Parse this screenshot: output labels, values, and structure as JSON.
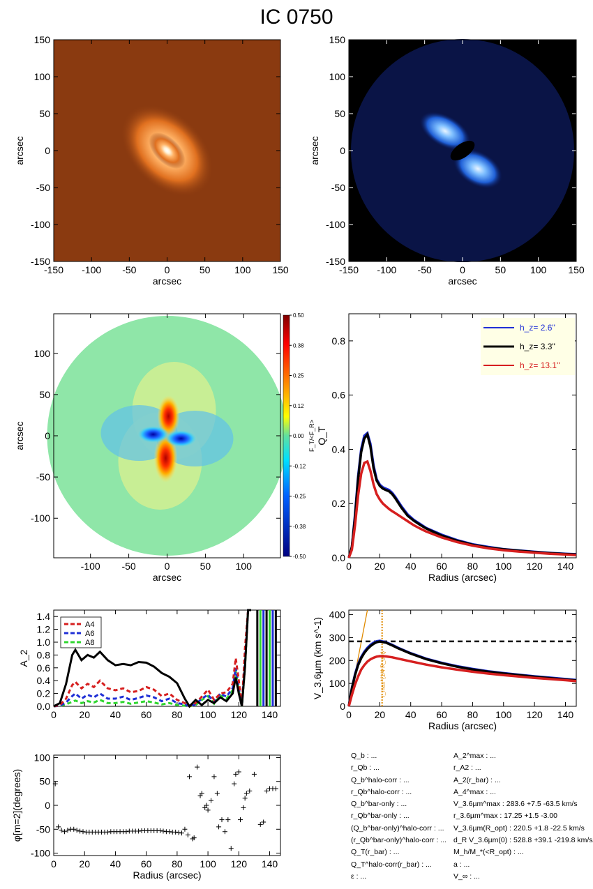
{
  "title": "IC 0750",
  "chart_data": [
    {
      "id": "image-3p6um",
      "type": "heatmap",
      "xlabel": "arcsec",
      "ylabel": "arcsec",
      "xlim": [
        -150,
        150
      ],
      "ylim": [
        -150,
        150
      ],
      "xticks": [
        -150,
        -100,
        -50,
        0,
        50,
        100,
        150
      ],
      "yticks": [
        -150,
        -100,
        -50,
        0,
        50,
        100,
        150
      ],
      "colormap": "orange-heat",
      "background_color": "#8a3a10"
    },
    {
      "id": "residual-image",
      "type": "heatmap",
      "xlabel": "arcsec",
      "ylabel": "arcsec",
      "xlim": [
        -150,
        150
      ],
      "ylim": [
        -150,
        150
      ],
      "xticks": [
        -150,
        -100,
        -50,
        0,
        50,
        100,
        150
      ],
      "yticks": [
        -150,
        -100,
        -50,
        0,
        50,
        100,
        150
      ],
      "colormap": "blue",
      "background_color": "#000000"
    },
    {
      "id": "force-ratio-map",
      "type": "heatmap",
      "xlabel": "arcsec",
      "ylabel": "arcsec",
      "xlim": [
        -148,
        148
      ],
      "ylim": [
        -148,
        148
      ],
      "xticks": [
        -100,
        -50,
        0,
        50,
        100
      ],
      "yticks": [
        -100,
        -50,
        0,
        50,
        100
      ],
      "colorbar_label": "F_T/<F_R>",
      "colorbar_ticks": [
        "0.50",
        "0.38",
        "0.25",
        "0.12",
        "0.00",
        "-0.12",
        "-0.25",
        "-0.38",
        "-0.50"
      ],
      "colorbar_range": [
        -0.5,
        0.5
      ]
    },
    {
      "id": "qt-profile",
      "type": "line",
      "xlabel": "Radius (arcsec)",
      "ylabel": "Q_T",
      "xlim": [
        0,
        147
      ],
      "ylim": [
        0,
        0.9
      ],
      "xticks": [
        0,
        20,
        40,
        60,
        80,
        100,
        120,
        140
      ],
      "yticks": [
        0.0,
        0.2,
        0.4,
        0.6,
        0.8
      ],
      "x": [
        0,
        2,
        4,
        6,
        8,
        10,
        12,
        14,
        16,
        18,
        20,
        22,
        24,
        26,
        28,
        30,
        34,
        38,
        42,
        46,
        50,
        60,
        70,
        80,
        90,
        100,
        110,
        120,
        130,
        140,
        147
      ],
      "series": [
        {
          "name": "h_z=  2.6''",
          "color": "#1f2fd6",
          "values": [
            0.0,
            0.04,
            0.16,
            0.3,
            0.4,
            0.45,
            0.46,
            0.42,
            0.34,
            0.29,
            0.27,
            0.26,
            0.255,
            0.25,
            0.24,
            0.225,
            0.19,
            0.16,
            0.14,
            0.125,
            0.11,
            0.085,
            0.065,
            0.05,
            0.04,
            0.032,
            0.027,
            0.022,
            0.018,
            0.015,
            0.013
          ]
        },
        {
          "name": "h_z=   3.3''",
          "color": "#000000",
          "values": [
            0.0,
            0.04,
            0.15,
            0.29,
            0.39,
            0.44,
            0.455,
            0.41,
            0.33,
            0.285,
            0.265,
            0.255,
            0.25,
            0.245,
            0.235,
            0.22,
            0.185,
            0.155,
            0.137,
            0.122,
            0.108,
            0.082,
            0.063,
            0.048,
            0.038,
            0.031,
            0.026,
            0.021,
            0.017,
            0.014,
            0.012
          ]
        },
        {
          "name": "h_z= 13.1''",
          "color": "#d61f1f",
          "values": [
            0.0,
            0.03,
            0.12,
            0.23,
            0.31,
            0.35,
            0.355,
            0.32,
            0.27,
            0.235,
            0.215,
            0.2,
            0.19,
            0.18,
            0.172,
            0.165,
            0.15,
            0.135,
            0.12,
            0.108,
            0.097,
            0.075,
            0.058,
            0.045,
            0.035,
            0.028,
            0.023,
            0.019,
            0.015,
            0.012,
            0.01
          ]
        }
      ],
      "legend_position": "top-right"
    },
    {
      "id": "fourier-amplitudes",
      "type": "line",
      "ylabel": "A_2",
      "xlim": [
        0,
        147
      ],
      "ylim": [
        0,
        1.5
      ],
      "xticks": [
        0,
        20,
        40,
        60,
        80,
        100,
        120,
        140
      ],
      "yticks": [
        0.0,
        0.2,
        0.4,
        0.6,
        0.8,
        1.0,
        1.2,
        1.4
      ],
      "x": [
        0,
        4,
        8,
        12,
        14,
        18,
        22,
        26,
        30,
        35,
        40,
        45,
        50,
        55,
        60,
        65,
        70,
        75,
        80,
        85,
        88,
        92,
        96,
        100,
        104,
        108,
        112,
        116,
        118,
        120,
        122,
        124,
        126,
        128
      ],
      "series": [
        {
          "name": "A_2",
          "color": "#000000",
          "dash": false,
          "values": [
            0.0,
            0.05,
            0.35,
            0.8,
            0.88,
            0.72,
            0.8,
            0.76,
            0.85,
            0.72,
            0.64,
            0.66,
            0.64,
            0.69,
            0.68,
            0.62,
            0.52,
            0.46,
            0.36,
            0.12,
            0.0,
            0.1,
            0.02,
            0.1,
            0.05,
            0.14,
            0.08,
            0.2,
            0.45,
            0.2,
            0.0,
            0.6,
            1.5,
            1.5
          ]
        },
        {
          "name": "A_4",
          "color": "#d61f1f",
          "dash": true,
          "values": [
            0.0,
            0.02,
            0.12,
            0.33,
            0.38,
            0.28,
            0.35,
            0.3,
            0.4,
            0.28,
            0.25,
            0.28,
            0.22,
            0.24,
            0.3,
            0.26,
            0.16,
            0.2,
            0.1,
            0.05,
            0.0,
            0.05,
            0.15,
            0.26,
            0.1,
            0.2,
            0.22,
            0.35,
            0.75,
            0.4,
            0.0,
            0.9,
            1.5,
            1.5
          ]
        },
        {
          "name": "A_6",
          "color": "#1f2fd6",
          "dash": true,
          "values": [
            0.0,
            0.01,
            0.06,
            0.16,
            0.2,
            0.12,
            0.18,
            0.14,
            0.2,
            0.12,
            0.12,
            0.15,
            0.1,
            0.13,
            0.17,
            0.14,
            0.08,
            0.12,
            0.05,
            0.03,
            0.0,
            0.03,
            0.12,
            0.18,
            0.07,
            0.2,
            0.15,
            0.28,
            0.6,
            0.3,
            0.0,
            0.7,
            1.5,
            1.5
          ]
        },
        {
          "name": "A_8",
          "color": "#2fd62f",
          "dash": true,
          "values": [
            0.0,
            0.01,
            0.03,
            0.07,
            0.09,
            0.05,
            0.08,
            0.06,
            0.1,
            0.05,
            0.05,
            0.07,
            0.04,
            0.06,
            0.08,
            0.06,
            0.03,
            0.05,
            0.02,
            0.01,
            0.0,
            0.02,
            0.1,
            0.16,
            0.04,
            0.17,
            0.12,
            0.25,
            0.55,
            0.25,
            0.0,
            0.6,
            1.5,
            1.5
          ]
        }
      ],
      "vertical_stripes_x": [
        132,
        134,
        136,
        138,
        140,
        142,
        144
      ],
      "legend_position": "top-left"
    },
    {
      "id": "rotation-curve",
      "type": "line",
      "xlabel": "Radius (arcsec)",
      "ylabel": "V_3.6µm (km s^-1)",
      "xlim": [
        0,
        147
      ],
      "ylim": [
        0,
        420
      ],
      "xticks": [
        0,
        20,
        40,
        60,
        80,
        100,
        120,
        140
      ],
      "yticks": [
        0,
        100,
        200,
        300,
        400
      ],
      "x": [
        0,
        2,
        4,
        6,
        8,
        10,
        12,
        14,
        16,
        18,
        20,
        24,
        28,
        32,
        40,
        50,
        60,
        70,
        80,
        90,
        100,
        110,
        120,
        130,
        140,
        147
      ],
      "series": [
        {
          "name": "h_z= 2.6''",
          "color": "#1f2fd6",
          "values": [
            0,
            80,
            140,
            185,
            215,
            238,
            255,
            268,
            278,
            284,
            286,
            280,
            268,
            255,
            232,
            208,
            190,
            175,
            163,
            153,
            145,
            138,
            131,
            125,
            119,
            115
          ]
        },
        {
          "name": "h_z= 3.3''",
          "color": "#000000",
          "values": [
            0,
            78,
            136,
            180,
            210,
            233,
            250,
            263,
            273,
            280,
            283,
            278,
            266,
            253,
            230,
            206,
            188,
            173,
            161,
            151,
            143,
            136,
            129,
            123,
            117,
            113
          ]
        },
        {
          "name": "h_z= 13.1''",
          "color": "#d61f1f",
          "values": [
            0,
            50,
            95,
            130,
            160,
            180,
            195,
            205,
            212,
            217,
            219,
            218,
            214,
            208,
            196,
            182,
            170,
            160,
            151,
            143,
            136,
            130,
            124,
            119,
            114,
            110
          ]
        }
      ],
      "hline_y": 283.6,
      "vline_x": 21.5,
      "vline_label": "r_max^{1/4 R_opt}",
      "rising_line": {
        "x": [
          0,
          12
        ],
        "values": [
          0,
          420
        ]
      },
      "vline_color": "#e08a00"
    },
    {
      "id": "phase-profile",
      "type": "scatter",
      "xlabel": "Radius (arcsec)",
      "ylabel": "φ[m=2](degrees)",
      "xlim": [
        0,
        147
      ],
      "ylim": [
        -105,
        105
      ],
      "xticks": [
        0,
        20,
        40,
        60,
        80,
        100,
        120,
        140
      ],
      "yticks": [
        -100,
        -50,
        0,
        50,
        100
      ],
      "points": [
        [
          1,
          45
        ],
        [
          3,
          -45
        ],
        [
          5,
          -52
        ],
        [
          7,
          -55
        ],
        [
          9,
          -52
        ],
        [
          11,
          -50
        ],
        [
          13,
          -50
        ],
        [
          15,
          -52
        ],
        [
          17,
          -54
        ],
        [
          19,
          -55
        ],
        [
          21,
          -56
        ],
        [
          23,
          -56
        ],
        [
          25,
          -56
        ],
        [
          27,
          -56
        ],
        [
          29,
          -56
        ],
        [
          31,
          -56
        ],
        [
          33,
          -56
        ],
        [
          35,
          -56
        ],
        [
          37,
          -55
        ],
        [
          39,
          -55
        ],
        [
          41,
          -55
        ],
        [
          43,
          -55
        ],
        [
          45,
          -55
        ],
        [
          47,
          -55
        ],
        [
          49,
          -54
        ],
        [
          51,
          -54
        ],
        [
          53,
          -54
        ],
        [
          55,
          -54
        ],
        [
          57,
          -53
        ],
        [
          59,
          -53
        ],
        [
          61,
          -53
        ],
        [
          63,
          -53
        ],
        [
          65,
          -53
        ],
        [
          67,
          -53
        ],
        [
          69,
          -53
        ],
        [
          71,
          -54
        ],
        [
          73,
          -55
        ],
        [
          75,
          -55
        ],
        [
          77,
          -56
        ],
        [
          79,
          -56
        ],
        [
          81,
          -57
        ],
        [
          83,
          -58
        ],
        [
          85,
          -50
        ],
        [
          87,
          -62
        ],
        [
          88,
          60
        ],
        [
          90,
          -70
        ],
        [
          91,
          -68
        ],
        [
          93,
          80
        ],
        [
          95,
          20
        ],
        [
          96,
          25
        ],
        [
          98,
          -5
        ],
        [
          99,
          0
        ],
        [
          100,
          -10
        ],
        [
          102,
          10
        ],
        [
          104,
          60
        ],
        [
          106,
          25
        ],
        [
          107,
          -45
        ],
        [
          109,
          -30
        ],
        [
          111,
          -55
        ],
        [
          113,
          -30
        ],
        [
          115,
          -90
        ],
        [
          117,
          45
        ],
        [
          118,
          65
        ],
        [
          120,
          70
        ],
        [
          121,
          -30
        ],
        [
          123,
          -5
        ],
        [
          124,
          15
        ],
        [
          125,
          25
        ],
        [
          127,
          30
        ],
        [
          130,
          65
        ],
        [
          134,
          -40
        ],
        [
          136,
          -35
        ],
        [
          138,
          30
        ],
        [
          140,
          35
        ],
        [
          142,
          35
        ],
        [
          144,
          35
        ]
      ],
      "marker": "+"
    }
  ],
  "stats": {
    "left": [
      "Q_b : ...",
      "r_Qb : ...",
      "Q_b^halo-corr : ...",
      "r_Qb^halo-corr : ...",
      "Q_b^bar-only : ...",
      "r_Qb^bar-only : ...",
      "(Q_b^bar-only)^halo-corr : ...",
      "(r_Qb^bar-only)^halo-corr : ...",
      "Q_T(r_bar) : ...",
      "Q_T^halo-corr(r_bar) : ...",
      "ε : ..."
    ],
    "right": [
      "A_2^max : ...",
      "r_A2 : ...",
      "A_2(r_bar) : ...",
      "A_4^max : ...",
      "V_3.6µm^max : 283.6 +7.5 -63.5 km/s",
      "r_3.6µm^max : 17.25 +1.5 -3.00",
      "V_3.6µm(R_opt) : 220.5 +1.8 -22.5 km/s",
      "d_R V_3.6µm(0) : 528.8 +39.1 -219.8 km/s/kpc",
      "M_h/M_*(<R_opt) : ...",
      "a : ...",
      "V_∞ : ..."
    ]
  }
}
